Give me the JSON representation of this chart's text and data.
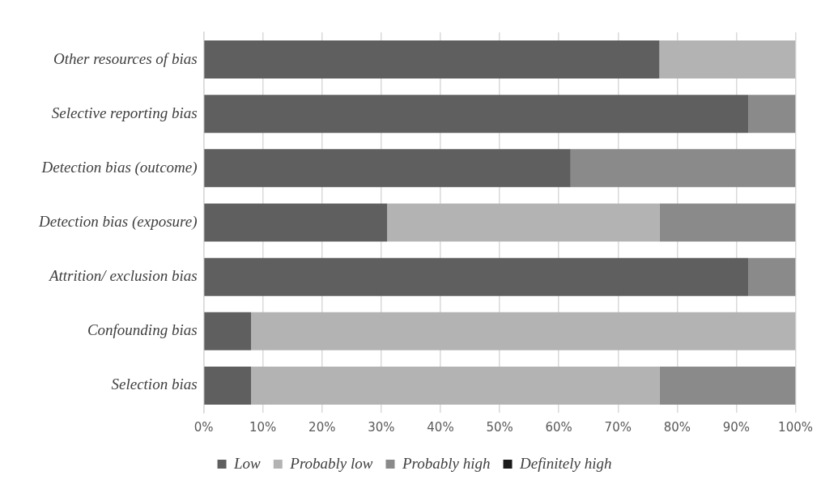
{
  "chart_data": {
    "type": "bar",
    "orientation": "horizontal",
    "stacked": true,
    "categories": [
      "Other resources of bias",
      "Selective reporting bias",
      "Detection bias (outcome)",
      "Detection bias (exposure)",
      "Attrition/ exclusion bias",
      "Confounding bias",
      "Selection bias"
    ],
    "series": [
      {
        "name": "Low",
        "color": "#5f5f5f",
        "values": [
          77,
          92,
          62,
          31,
          92,
          8,
          8
        ]
      },
      {
        "name": "Probably low",
        "color": "#b3b3b3",
        "values": [
          23,
          0,
          0,
          46,
          0,
          92,
          69
        ]
      },
      {
        "name": "Probably high",
        "color": "#8a8a8a",
        "values": [
          0,
          8,
          38,
          23,
          8,
          0,
          23
        ]
      },
      {
        "name": "Definitely high",
        "color": "#1a1a1a",
        "values": [
          0,
          0,
          0,
          0,
          0,
          0,
          0
        ]
      }
    ],
    "xlim": [
      0,
      100
    ],
    "xticks": [
      {
        "value": 0,
        "label": "0%"
      },
      {
        "value": 10,
        "label": "10%"
      },
      {
        "value": 20,
        "label": "20%"
      },
      {
        "value": 30,
        "label": "30%"
      },
      {
        "value": 40,
        "label": "40%"
      },
      {
        "value": 50,
        "label": "50%"
      },
      {
        "value": 60,
        "label": "60%"
      },
      {
        "value": 70,
        "label": "70%"
      },
      {
        "value": 80,
        "label": "80%"
      },
      {
        "value": 90,
        "label": "90%"
      },
      {
        "value": 100,
        "label": "100%"
      }
    ],
    "grid": "x",
    "legend": "bottom"
  }
}
